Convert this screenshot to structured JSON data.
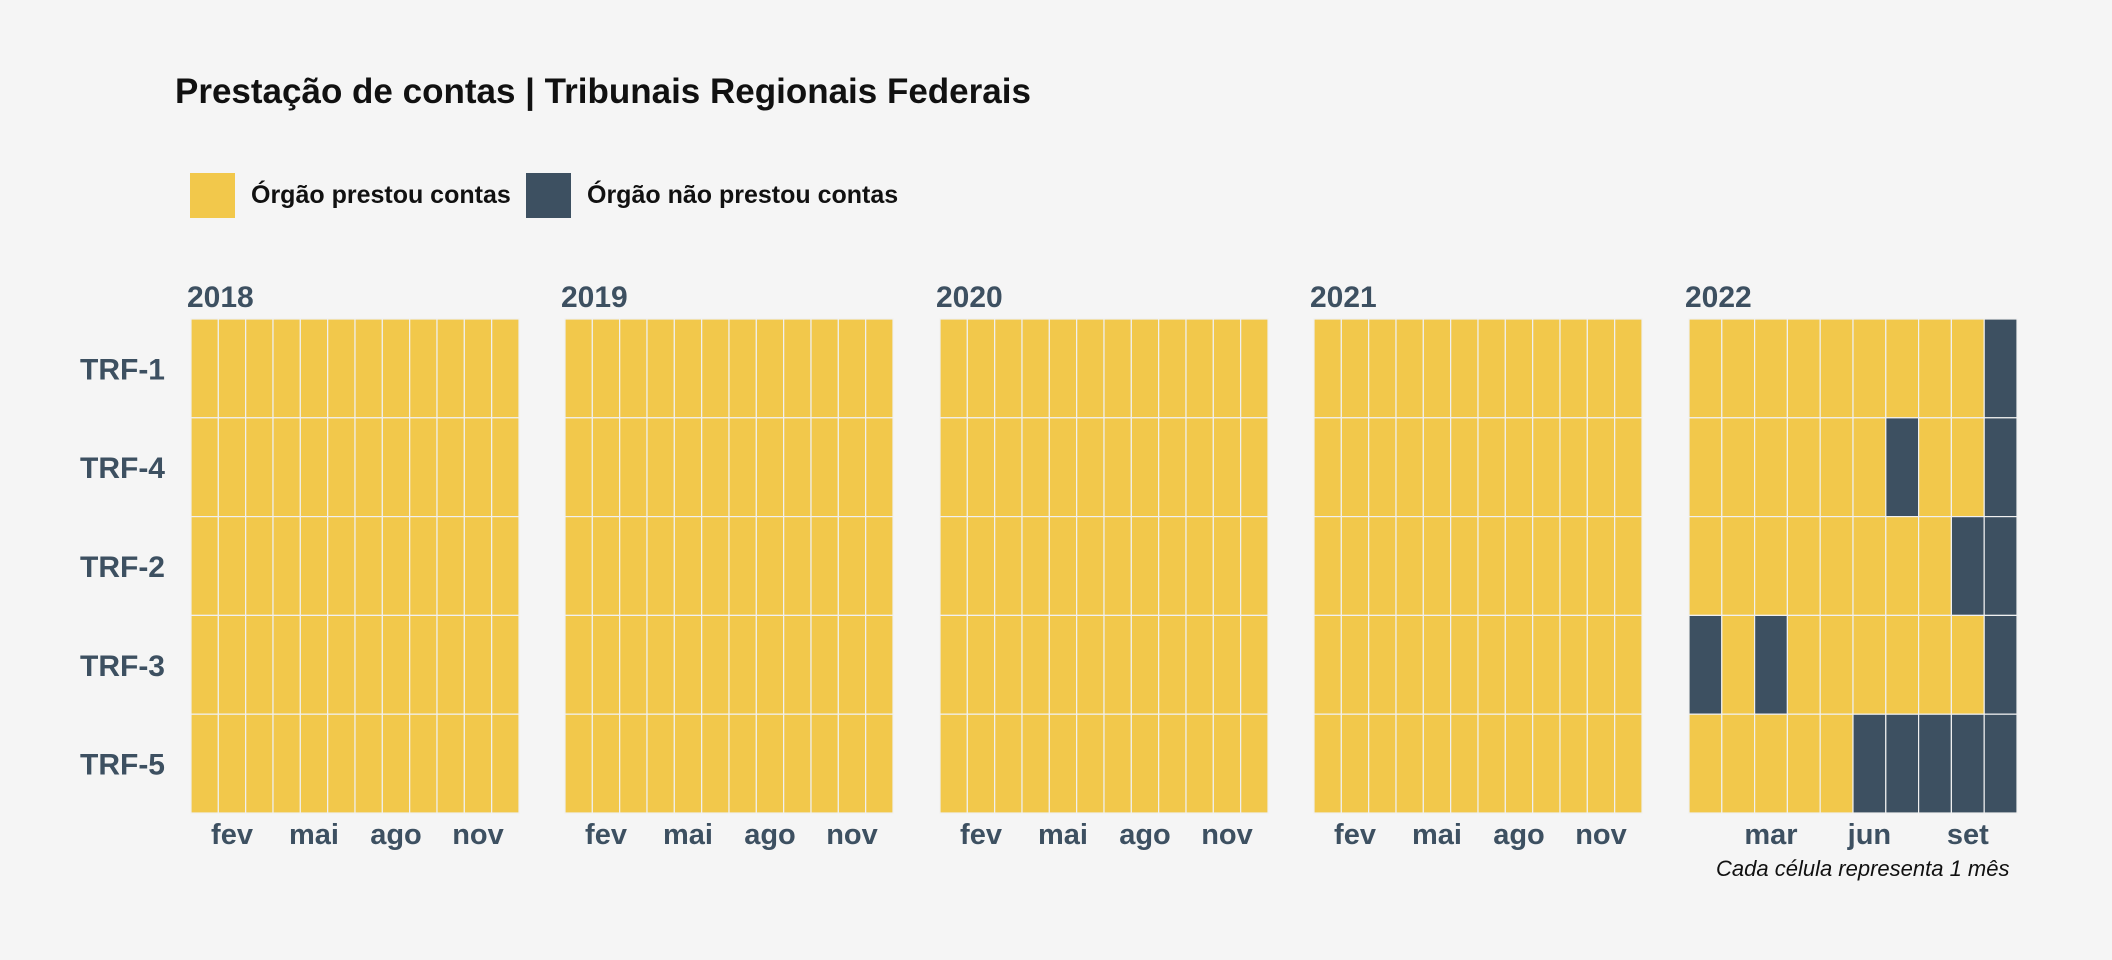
{
  "title": "Prestação de contas | Tribunais Regionais Federais",
  "caption": "Cada célula representa 1 mês",
  "legend": [
    {
      "label": "Órgão prestou contas",
      "color": "#f2c84b"
    },
    {
      "label": "Órgão não prestou contas",
      "color": "#3d5061"
    }
  ],
  "chart_data": {
    "type": "heatmap",
    "title": "Prestação de contas | Tribunais Regionais Federais",
    "legend_placement": "top-left",
    "grid": false,
    "rows": [
      "TRF-1",
      "TRF-4",
      "TRF-2",
      "TRF-3",
      "TRF-5"
    ],
    "categories_legend": {
      "1": "Órgão prestou contas",
      "0": "Órgão não prestou contas"
    },
    "colors": {
      "1": "#f2c84b",
      "0": "#3d5061"
    },
    "panels": [
      {
        "year": "2018",
        "months": [
          1,
          2,
          3,
          4,
          5,
          6,
          7,
          8,
          9,
          10,
          11,
          12
        ],
        "ticks": [
          {
            "month": 2,
            "label": "fev"
          },
          {
            "month": 5,
            "label": "mai"
          },
          {
            "month": 8,
            "label": "ago"
          },
          {
            "month": 11,
            "label": "nov"
          }
        ],
        "values": [
          [
            1,
            1,
            1,
            1,
            1,
            1,
            1,
            1,
            1,
            1,
            1,
            1
          ],
          [
            1,
            1,
            1,
            1,
            1,
            1,
            1,
            1,
            1,
            1,
            1,
            1
          ],
          [
            1,
            1,
            1,
            1,
            1,
            1,
            1,
            1,
            1,
            1,
            1,
            1
          ],
          [
            1,
            1,
            1,
            1,
            1,
            1,
            1,
            1,
            1,
            1,
            1,
            1
          ],
          [
            1,
            1,
            1,
            1,
            1,
            1,
            1,
            1,
            1,
            1,
            1,
            1
          ]
        ]
      },
      {
        "year": "2019",
        "months": [
          1,
          2,
          3,
          4,
          5,
          6,
          7,
          8,
          9,
          10,
          11,
          12
        ],
        "ticks": [
          {
            "month": 2,
            "label": "fev"
          },
          {
            "month": 5,
            "label": "mai"
          },
          {
            "month": 8,
            "label": "ago"
          },
          {
            "month": 11,
            "label": "nov"
          }
        ],
        "values": [
          [
            1,
            1,
            1,
            1,
            1,
            1,
            1,
            1,
            1,
            1,
            1,
            1
          ],
          [
            1,
            1,
            1,
            1,
            1,
            1,
            1,
            1,
            1,
            1,
            1,
            1
          ],
          [
            1,
            1,
            1,
            1,
            1,
            1,
            1,
            1,
            1,
            1,
            1,
            1
          ],
          [
            1,
            1,
            1,
            1,
            1,
            1,
            1,
            1,
            1,
            1,
            1,
            1
          ],
          [
            1,
            1,
            1,
            1,
            1,
            1,
            1,
            1,
            1,
            1,
            1,
            1
          ]
        ]
      },
      {
        "year": "2020",
        "months": [
          1,
          2,
          3,
          4,
          5,
          6,
          7,
          8,
          9,
          10,
          11,
          12
        ],
        "ticks": [
          {
            "month": 2,
            "label": "fev"
          },
          {
            "month": 5,
            "label": "mai"
          },
          {
            "month": 8,
            "label": "ago"
          },
          {
            "month": 11,
            "label": "nov"
          }
        ],
        "values": [
          [
            1,
            1,
            1,
            1,
            1,
            1,
            1,
            1,
            1,
            1,
            1,
            1
          ],
          [
            1,
            1,
            1,
            1,
            1,
            1,
            1,
            1,
            1,
            1,
            1,
            1
          ],
          [
            1,
            1,
            1,
            1,
            1,
            1,
            1,
            1,
            1,
            1,
            1,
            1
          ],
          [
            1,
            1,
            1,
            1,
            1,
            1,
            1,
            1,
            1,
            1,
            1,
            1
          ],
          [
            1,
            1,
            1,
            1,
            1,
            1,
            1,
            1,
            1,
            1,
            1,
            1
          ]
        ]
      },
      {
        "year": "2021",
        "months": [
          1,
          2,
          3,
          4,
          5,
          6,
          7,
          8,
          9,
          10,
          11,
          12
        ],
        "ticks": [
          {
            "month": 2,
            "label": "fev"
          },
          {
            "month": 5,
            "label": "mai"
          },
          {
            "month": 8,
            "label": "ago"
          },
          {
            "month": 11,
            "label": "nov"
          }
        ],
        "values": [
          [
            1,
            1,
            1,
            1,
            1,
            1,
            1,
            1,
            1,
            1,
            1,
            1
          ],
          [
            1,
            1,
            1,
            1,
            1,
            1,
            1,
            1,
            1,
            1,
            1,
            1
          ],
          [
            1,
            1,
            1,
            1,
            1,
            1,
            1,
            1,
            1,
            1,
            1,
            1
          ],
          [
            1,
            1,
            1,
            1,
            1,
            1,
            1,
            1,
            1,
            1,
            1,
            1
          ],
          [
            1,
            1,
            1,
            1,
            1,
            1,
            1,
            1,
            1,
            1,
            1,
            1
          ]
        ]
      },
      {
        "year": "2022",
        "months": [
          1,
          2,
          3,
          4,
          5,
          6,
          7,
          8,
          9,
          10
        ],
        "ticks": [
          {
            "month": 3,
            "label": "mar"
          },
          {
            "month": 6,
            "label": "jun"
          },
          {
            "month": 9,
            "label": "set"
          }
        ],
        "values": [
          [
            1,
            1,
            1,
            1,
            1,
            1,
            1,
            1,
            1,
            0
          ],
          [
            1,
            1,
            1,
            1,
            1,
            1,
            0,
            1,
            1,
            0
          ],
          [
            1,
            1,
            1,
            1,
            1,
            1,
            1,
            1,
            0,
            0
          ],
          [
            0,
            1,
            0,
            1,
            1,
            1,
            1,
            1,
            1,
            0
          ],
          [
            1,
            1,
            1,
            1,
            1,
            0,
            0,
            0,
            0,
            0
          ]
        ]
      }
    ]
  }
}
